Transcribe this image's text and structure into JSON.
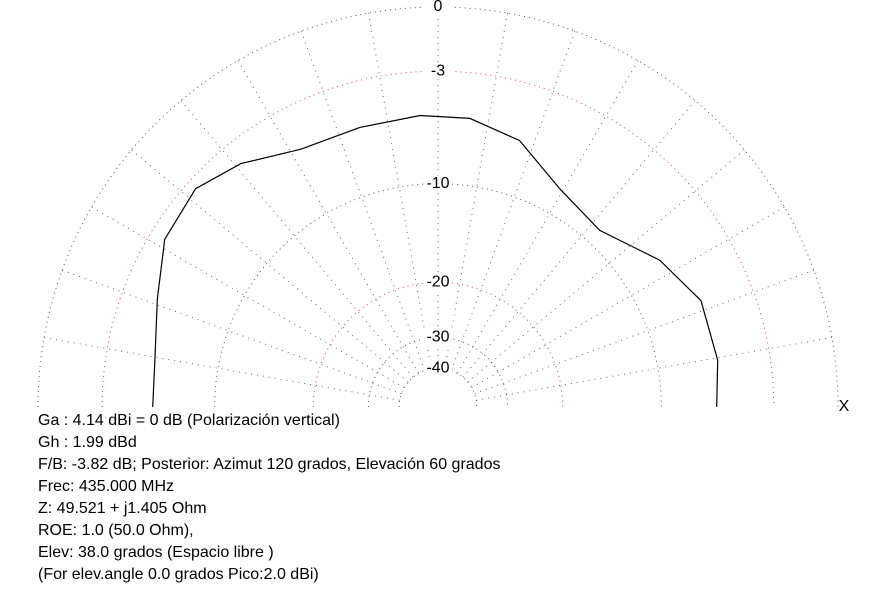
{
  "chart_data": {
    "type": "polar",
    "rticks": [
      0,
      -3,
      -10,
      -20,
      -30,
      -40
    ],
    "ring_colors": [
      "#555",
      "#d04040",
      "#555",
      "#d04040",
      "#555",
      "#555"
    ],
    "x_label": "X",
    "series": [
      {
        "color": "#000",
        "angles": [
          0,
          9.5,
          22,
          33.5,
          47.5,
          60.6,
          73,
          83.7,
          93.5,
          105.6,
          118,
          129,
          138,
          148.5,
          159,
          170.6,
          180
        ],
        "values": [
          -6.2,
          -5.9,
          -5.9,
          -7.0,
          -8.8,
          -8.1,
          -6.2,
          -5.5,
          -5.4,
          -5.5,
          -5.4,
          -4.2,
          -3.5,
          -3.8,
          -4.9,
          -5.7,
          -5.8
        ]
      }
    ],
    "info_lines": [
      "Ga : 4.14 dBi = 0 dB  (Polarización vertical)",
      "Gh : 1.99 dBd",
      "F/B: -3.82 dB; Posterior: Azimut 120 grados,  Elevación 60 grados",
      "Frec: 435.000 MHz",
      "Z: 49.521 + j1.405 Ohm",
      "ROE: 1.0 (50.0 Ohm),",
      "Elev: 38.0 grados (Espacio libre )",
      "(For elev.angle 0.0 grados Pico:2.0 dBi)"
    ]
  }
}
